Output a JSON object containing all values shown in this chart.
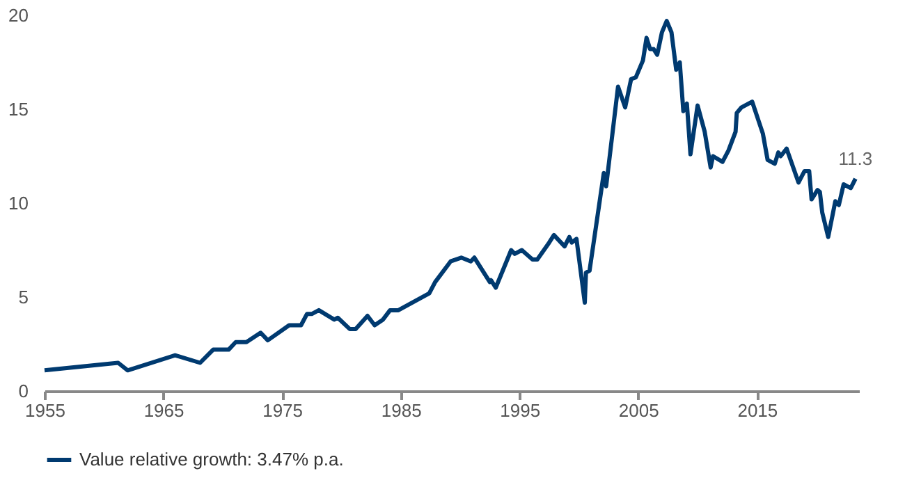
{
  "chart_data": {
    "type": "line",
    "xlim": [
      1955,
      2023.6
    ],
    "xticks": [
      1955,
      1965,
      1975,
      1985,
      1995,
      2005,
      2015
    ],
    "ylim": [
      0,
      20
    ],
    "yticks": [
      0,
      5,
      10,
      15,
      20
    ],
    "grid": false,
    "legend": "bottom",
    "line_style": "solid",
    "marker": "none",
    "annotations": [
      {
        "text": "11.3",
        "x": 2023.3,
        "y": 11.3
      }
    ],
    "series": [
      {
        "name": "Value relative growth: 3.47% p.a.",
        "color": "#003a70",
        "x": [
          1955,
          1961.2,
          1962,
          1966,
          1968.1,
          1969.2,
          1970.5,
          1971.1,
          1972,
          1973.2,
          1973.8,
          1975.6,
          1976.6,
          1977.1,
          1977.5,
          1978.1,
          1979.4,
          1979.7,
          1980.7,
          1981.2,
          1982.2,
          1982.8,
          1983.5,
          1984.1,
          1984.8,
          1987.4,
          1987.9,
          1989.2,
          1990.1,
          1990.9,
          1991.2,
          1992.5,
          1992.6,
          1993,
          1994.3,
          1994.6,
          1995.2,
          1996.1,
          1996.5,
          1997.5,
          1997.9,
          1998.8,
          1999.2,
          1999.4,
          1999.8,
          2000.5,
          2000.6,
          2000.9,
          2002.1,
          2002.3,
          2003.3,
          2003.9,
          2004.4,
          2004.8,
          2005.4,
          2005.7,
          2006,
          2006.3,
          2006.6,
          2007,
          2007.4,
          2007.8,
          2008.2,
          2008.5,
          2008.8,
          2009.1,
          2009.4,
          2010,
          2010.6,
          2011.1,
          2011.3,
          2012.1,
          2012.6,
          2013.2,
          2013.3,
          2013.7,
          2014.3,
          2014.6,
          2015.5,
          2015.9,
          2016.5,
          2016.8,
          2017,
          2017.5,
          2018.5,
          2019,
          2019.4,
          2019.6,
          2020.1,
          2020.3,
          2020.5,
          2021,
          2021.6,
          2021.9,
          2022.3,
          2022.9,
          2023.3
        ],
        "values": [
          1.1,
          1.5,
          1.1,
          1.9,
          1.5,
          2.2,
          2.2,
          2.6,
          2.6,
          3.1,
          2.7,
          3.5,
          3.5,
          4.1,
          4.1,
          4.3,
          3.8,
          3.9,
          3.3,
          3.3,
          4.0,
          3.5,
          3.8,
          4.3,
          4.3,
          5.2,
          5.8,
          6.9,
          7.1,
          6.9,
          7.1,
          5.8,
          5.9,
          5.5,
          7.5,
          7.3,
          7.5,
          7.0,
          7.0,
          7.9,
          8.3,
          7.7,
          8.2,
          7.9,
          8.1,
          4.7,
          6.3,
          6.4,
          11.6,
          10.9,
          16.2,
          15.1,
          16.6,
          16.7,
          17.6,
          18.8,
          18.2,
          18.2,
          17.9,
          19.1,
          19.7,
          19.1,
          17.1,
          17.5,
          14.9,
          15.3,
          12.6,
          15.2,
          13.8,
          11.9,
          12.5,
          12.2,
          12.8,
          13.8,
          14.8,
          15.1,
          15.3,
          15.4,
          13.7,
          12.3,
          12.1,
          12.7,
          12.5,
          12.9,
          11.1,
          11.7,
          11.7,
          10.2,
          10.7,
          10.6,
          9.5,
          8.2,
          10.1,
          9.9,
          11.0,
          10.8,
          11.3
        ]
      }
    ]
  }
}
